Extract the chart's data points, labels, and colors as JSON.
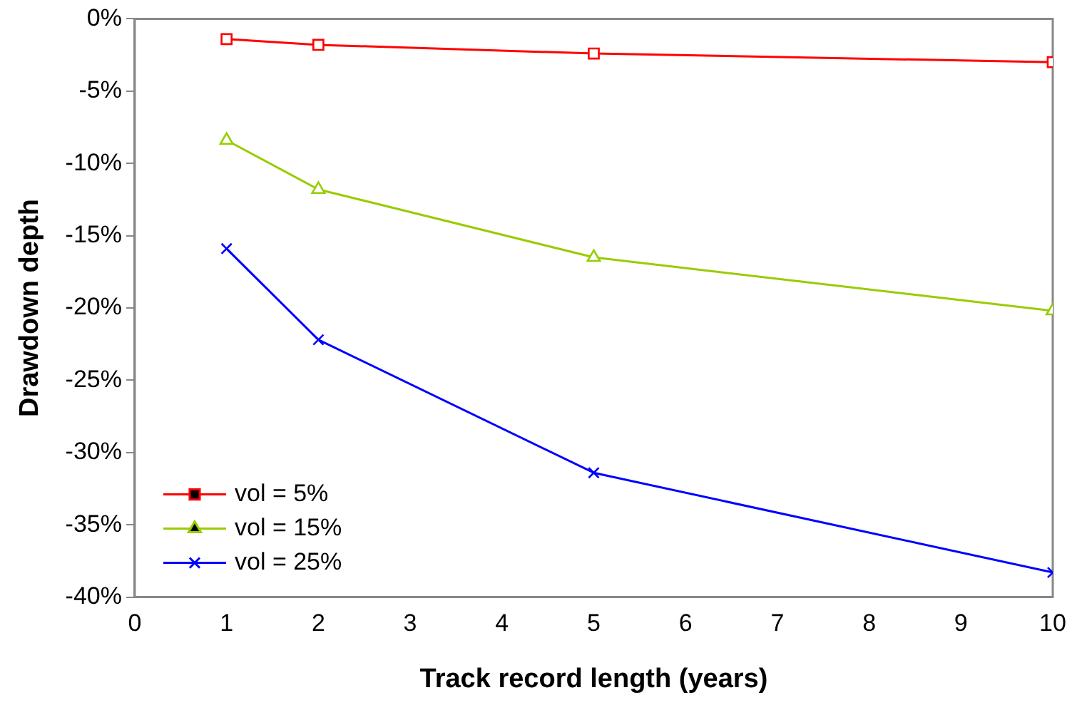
{
  "chart_data": {
    "type": "line",
    "xlabel": "Track record length (years)",
    "ylabel": "Drawdown depth",
    "x": [
      1,
      2,
      5,
      10
    ],
    "series": [
      {
        "name": "vol = 5%",
        "color": "#ff0000",
        "marker": "square",
        "values": [
          -1.4,
          -1.8,
          -2.4,
          -3.0
        ]
      },
      {
        "name": "vol = 15%",
        "color": "#99cc00",
        "marker": "triangle",
        "values": [
          -8.4,
          -11.8,
          -16.5,
          -20.2
        ]
      },
      {
        "name": "vol = 25%",
        "color": "#0000ff",
        "marker": "cross",
        "values": [
          -15.9,
          -22.2,
          -31.4,
          -38.3
        ]
      }
    ],
    "xlim": [
      0,
      10
    ],
    "xticks": [
      0,
      1,
      2,
      3,
      4,
      5,
      6,
      7,
      8,
      9,
      10
    ],
    "ylim": [
      -40,
      0
    ],
    "yticks": [
      {
        "value": 0,
        "label": "0%"
      },
      {
        "value": -5,
        "label": "-5%"
      },
      {
        "value": -10,
        "label": "-10%"
      },
      {
        "value": -15,
        "label": "-15%"
      },
      {
        "value": -20,
        "label": "-20%"
      },
      {
        "value": -25,
        "label": "-25%"
      },
      {
        "value": -30,
        "label": "-30%"
      },
      {
        "value": -35,
        "label": "-35%"
      },
      {
        "value": -40,
        "label": "-40%"
      }
    ],
    "grid": false,
    "legend": "bottom left",
    "line_style": "solid"
  }
}
